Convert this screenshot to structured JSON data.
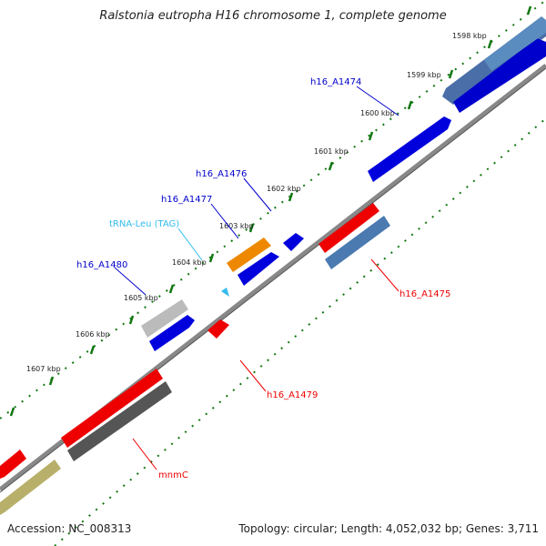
{
  "title": "Ralstonia eutropha H16 chromosome 1, complete genome",
  "accession": "Accession: NC_008313",
  "topology": "Topology: circular; Length: 4,052,032 bp; Genes: 3,711",
  "tick_labels": [
    "1598 kbp",
    "1599 kbp",
    "1600 kbp",
    "1601 kbp",
    "1602 kbp",
    "1603 kbp",
    "1604 kbp",
    "1605 kbp",
    "1606 kbp",
    "1607 kbp"
  ],
  "gene_labels": {
    "h16_A1474": "h16_A1474",
    "h16_A1476": "h16_A1476",
    "h16_A1477": "h16_A1477",
    "trna_leu": "tRNA-Leu (TAG)",
    "h16_A1480": "h16_A1480",
    "h16_A1475": "h16_A1475",
    "h16_A1479": "h16_A1479",
    "mnmC": "mnmC"
  },
  "colors": {
    "forward_gene": "#0000dd",
    "reverse_gene": "#ee0000",
    "trna": "#33bbee",
    "tick": "#117711",
    "backbone": "#888888"
  }
}
